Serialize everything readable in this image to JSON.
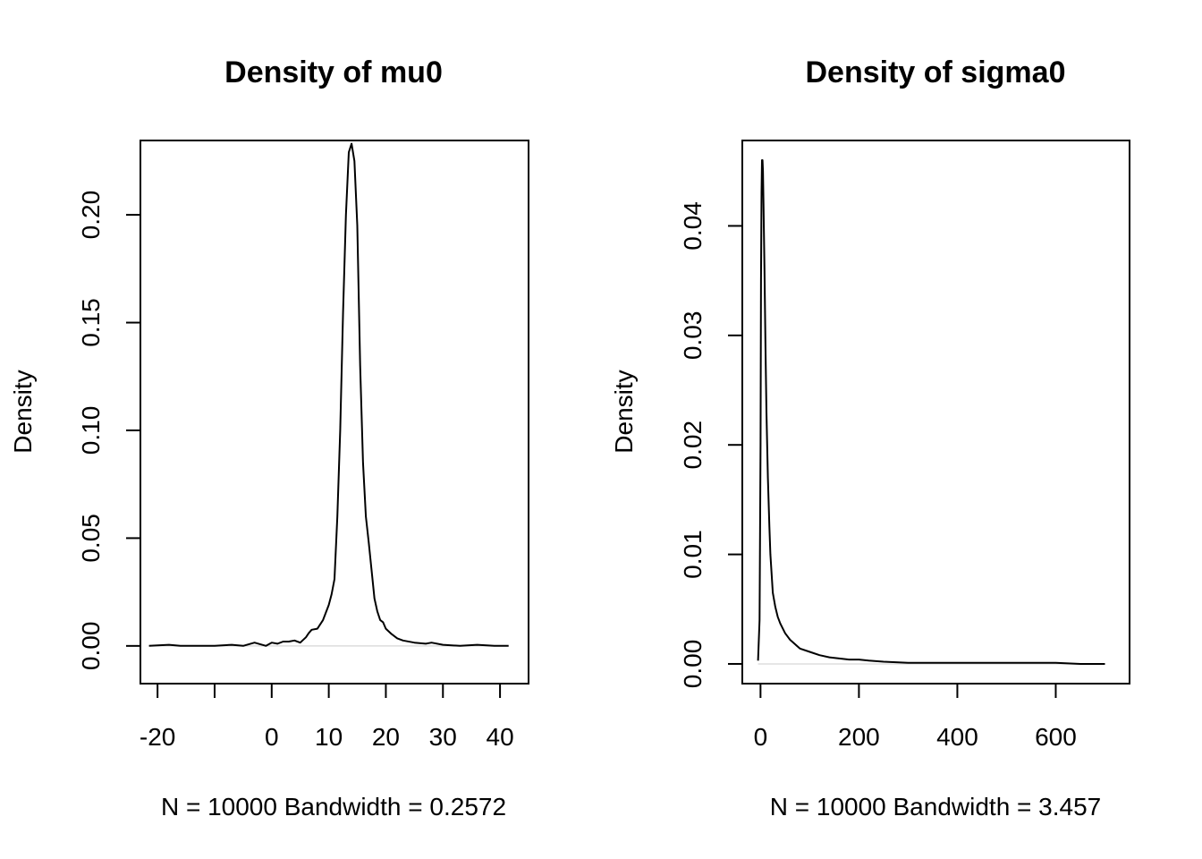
{
  "chart_data": [
    {
      "type": "line",
      "title": "Density of mu0",
      "xlabel": "N = 10000   Bandwidth = 0.2572",
      "ylabel": "Density",
      "xlim": [
        -23,
        45
      ],
      "ylim": [
        -0.0175,
        0.2345
      ],
      "x_ticks": [
        -20,
        -10,
        0,
        10,
        20,
        30,
        40
      ],
      "x_tick_labels": [
        "-20",
        "",
        "0",
        "10",
        "20",
        "30",
        "40"
      ],
      "y_ticks": [
        0.0,
        0.05,
        0.1,
        0.15,
        0.2
      ],
      "y_tick_labels": [
        "0.00",
        "0.05",
        "0.10",
        "0.15",
        "0.20"
      ],
      "grid": false,
      "series": [
        {
          "x": [
            -21.5,
            -18,
            -16,
            -13,
            -10,
            -7,
            -5,
            -3,
            -1,
            0,
            1,
            2,
            3,
            4,
            5,
            6,
            6.5,
            7,
            8,
            9,
            10,
            10.5,
            11,
            11.5,
            12,
            12.5,
            13,
            13.5,
            14,
            14.5,
            15,
            15.5,
            16,
            16.5,
            17,
            17.5,
            18,
            18.5,
            19,
            19.5,
            20,
            21,
            22,
            23,
            25,
            27,
            28,
            30,
            33,
            36,
            39,
            41.5
          ],
          "y": [
            0.0,
            0.0005,
            0.0,
            0.0,
            0.0,
            0.0005,
            0.0,
            0.0015,
            0.0,
            0.0015,
            0.001,
            0.002,
            0.002,
            0.0025,
            0.0015,
            0.004,
            0.006,
            0.0075,
            0.008,
            0.012,
            0.019,
            0.024,
            0.031,
            0.06,
            0.1,
            0.155,
            0.2,
            0.229,
            0.233,
            0.225,
            0.195,
            0.13,
            0.085,
            0.06,
            0.048,
            0.035,
            0.022,
            0.016,
            0.012,
            0.011,
            0.008,
            0.0055,
            0.0035,
            0.0025,
            0.0015,
            0.001,
            0.0015,
            0.0005,
            0.0,
            0.0005,
            0.0,
            0.0
          ]
        }
      ]
    },
    {
      "type": "line",
      "title": "Density of sigma0",
      "xlabel": "N = 10000   Bandwidth = 3.457",
      "ylabel": "Density",
      "xlim": [
        -37,
        750
      ],
      "ylim": [
        -0.0018,
        0.0478
      ],
      "x_ticks": [
        0,
        200,
        400,
        600
      ],
      "x_tick_labels": [
        "0",
        "200",
        "400",
        "600"
      ],
      "y_ticks": [
        0.0,
        0.01,
        0.02,
        0.03,
        0.04
      ],
      "y_tick_labels": [
        "0.00",
        "0.01",
        "0.02",
        "0.03",
        "0.04"
      ],
      "grid": false,
      "series": [
        {
          "x": [
            -5,
            -2,
            0,
            1,
            2,
            3,
            4,
            5,
            6,
            8,
            10,
            12,
            15,
            18,
            20,
            25,
            30,
            35,
            40,
            50,
            60,
            70,
            80,
            100,
            120,
            140,
            160,
            180,
            200,
            220,
            250,
            300,
            350,
            400,
            450,
            500,
            550,
            600,
            650,
            700
          ],
          "y": [
            0.0003,
            0.004,
            0.02,
            0.035,
            0.043,
            0.046,
            0.046,
            0.045,
            0.042,
            0.036,
            0.029,
            0.023,
            0.017,
            0.0125,
            0.01,
            0.0065,
            0.0052,
            0.0043,
            0.0037,
            0.0028,
            0.0022,
            0.0018,
            0.0014,
            0.0011,
            0.0008,
            0.0006,
            0.0005,
            0.0004,
            0.0004,
            0.0003,
            0.0002,
            0.0001,
            0.0001,
            0.0001,
            0.0001,
            0.0001,
            0.0001,
            0.0001,
            0.0,
            0.0
          ]
        }
      ]
    }
  ]
}
